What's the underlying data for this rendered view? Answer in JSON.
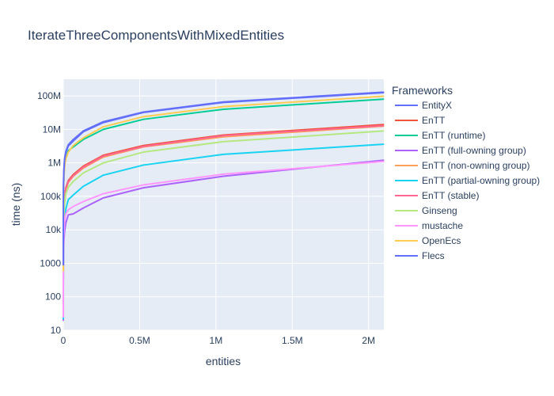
{
  "chart_data": {
    "type": "line",
    "title": "IterateThreeComponentsWithMixedEntities",
    "xlabel": "entities",
    "ylabel": "time (ns)",
    "xlim": [
      0,
      2100000
    ],
    "ylim_log10": [
      1,
      8.5
    ],
    "y_scale": "log",
    "grid": true,
    "legend_title": "Frameworks",
    "legend_position": "right",
    "x_ticks": [
      {
        "value": 0,
        "label": "0"
      },
      {
        "value": 500000,
        "label": "0.5M"
      },
      {
        "value": 1000000,
        "label": "1M"
      },
      {
        "value": 1500000,
        "label": "1.5M"
      },
      {
        "value": 2000000,
        "label": "2M"
      }
    ],
    "y_ticks": [
      {
        "value": 10,
        "label": "10"
      },
      {
        "value": 100,
        "label": "100"
      },
      {
        "value": 1000,
        "label": "1000"
      },
      {
        "value": 10000,
        "label": "10k"
      },
      {
        "value": 100000,
        "label": "100k"
      },
      {
        "value": 1000000,
        "label": "1M"
      },
      {
        "value": 10000000,
        "label": "10M"
      },
      {
        "value": 100000000,
        "label": "100M"
      }
    ],
    "x": [
      8,
      16,
      32,
      64,
      128,
      256,
      512,
      1024,
      2048,
      4096,
      8192,
      16384,
      32768,
      65536,
      131072,
      262144,
      524288,
      1048576,
      2097152
    ],
    "series": [
      {
        "name": "EntityX",
        "color": "#636efa",
        "values": [
          1000,
          2500,
          5000,
          10000,
          20000,
          40000,
          80000,
          160000,
          330000,
          650000,
          1300000,
          2200000,
          3500000,
          5000000,
          9000000,
          17000000,
          33000000,
          66000000,
          130000000
        ]
      },
      {
        "name": "EnTT",
        "color": "#ef553b",
        "values": [
          80,
          160,
          320,
          700,
          1400,
          2800,
          5500,
          11000,
          22000,
          44000,
          90000,
          180000,
          300000,
          450000,
          800000,
          1700000,
          3300000,
          6800000,
          14000000
        ]
      },
      {
        "name": "EnTT (runtime)",
        "color": "#00cc96",
        "values": [
          700,
          1600,
          3300,
          6500,
          13000,
          26000,
          52000,
          105000,
          200000,
          420000,
          850000,
          1400000,
          2300000,
          3000000,
          5000000,
          10000000,
          20000000,
          40000000,
          80000000
        ]
      },
      {
        "name": "EnTT (full-owning group)",
        "color": "#ab63fa",
        "values": [
          20,
          30,
          50,
          90,
          170,
          330,
          650,
          1300,
          2500,
          5000,
          9000,
          16000,
          28000,
          30000,
          45000,
          90000,
          180000,
          400000,
          1200000
        ]
      },
      {
        "name": "EnTT (non-owning group)",
        "color": "#ffa15a",
        "values": [
          70,
          140,
          280,
          600,
          1200,
          2400,
          4800,
          9500,
          19000,
          38000,
          80000,
          160000,
          260000,
          400000,
          700000,
          1500000,
          3000000,
          6000000,
          12500000
        ]
      },
      {
        "name": "EnTT (partial-owning group)",
        "color": "#19d3f3",
        "values": [
          22,
          40,
          80,
          160,
          320,
          640,
          1300,
          2600,
          5200,
          10000,
          21000,
          42000,
          80000,
          110000,
          200000,
          430000,
          860000,
          1800000,
          3600000
        ]
      },
      {
        "name": "EnTT (stable)",
        "color": "#ff6692",
        "values": [
          75,
          150,
          300,
          650,
          1300,
          2600,
          5200,
          10500,
          21000,
          42000,
          85000,
          170000,
          280000,
          420000,
          750000,
          1600000,
          3100000,
          6500000,
          13000000
        ]
      },
      {
        "name": "Ginseng",
        "color": "#b6e880",
        "values": [
          60,
          120,
          240,
          480,
          950,
          1900,
          3800,
          7500,
          15000,
          30000,
          60000,
          120000,
          190000,
          280000,
          500000,
          1000000,
          2100000,
          4300000,
          9000000
        ]
      },
      {
        "name": "mustache",
        "color": "#ff97ff",
        "values": [
          25,
          45,
          80,
          150,
          300,
          600,
          1200,
          2400,
          4800,
          9500,
          19000,
          30000,
          40000,
          50000,
          70000,
          120000,
          220000,
          460000,
          1100000
        ]
      },
      {
        "name": "OpenEcs",
        "color": "#fecb52",
        "values": [
          600,
          1400,
          2800,
          5500,
          11000,
          22000,
          44000,
          90000,
          180000,
          360000,
          750000,
          1300000,
          2100000,
          3300000,
          5600000,
          12000000,
          24000000,
          48000000,
          98000000
        ]
      },
      {
        "name": "Flecs",
        "color": "#636efa",
        "values": [
          900,
          2200,
          4500,
          9000,
          18000,
          36000,
          72000,
          150000,
          300000,
          600000,
          1200000,
          2000000,
          3200000,
          4500000,
          8500000,
          16000000,
          32000000,
          64000000,
          125000000
        ]
      }
    ]
  }
}
